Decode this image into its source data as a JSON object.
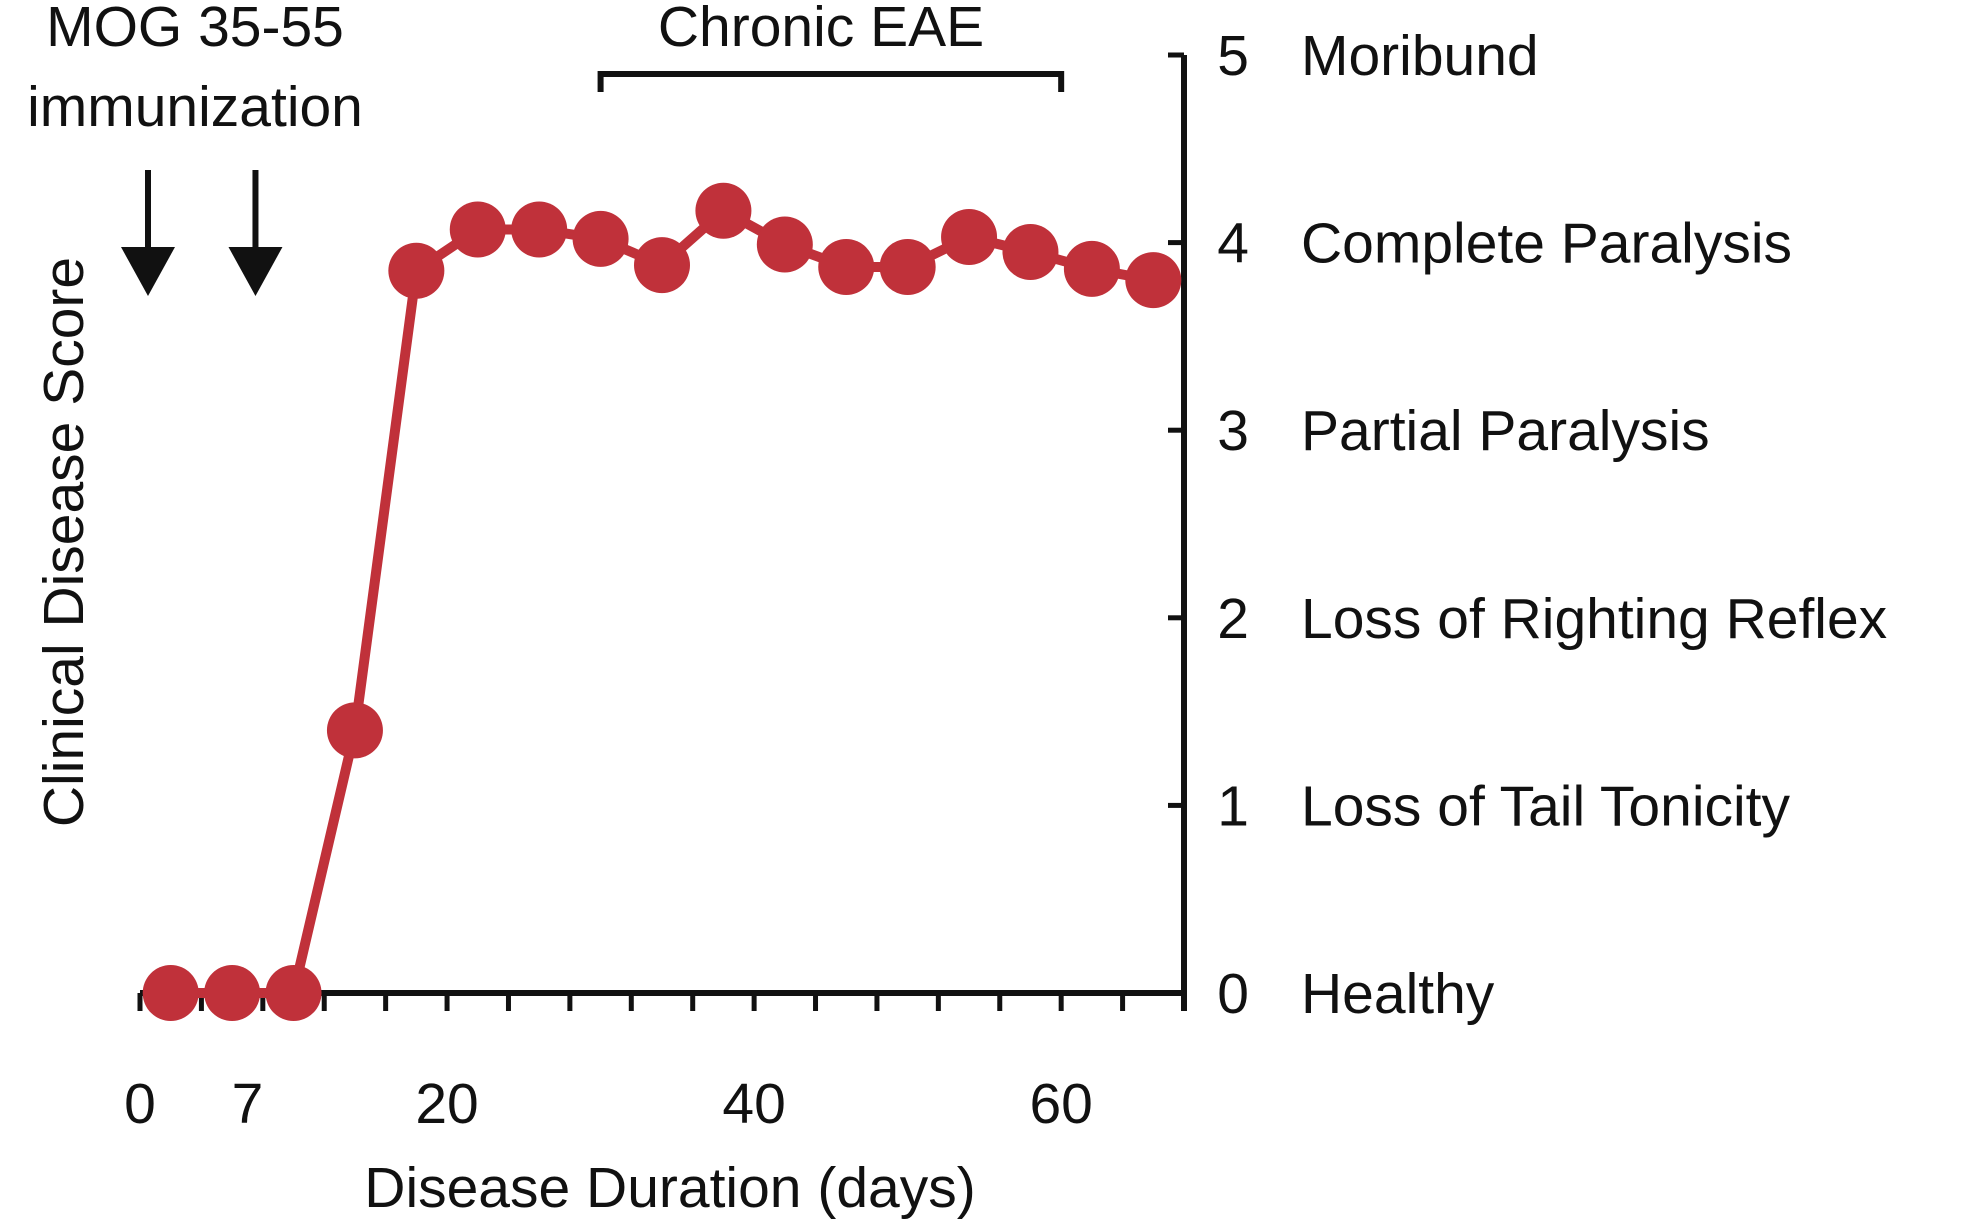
{
  "chart_data": {
    "type": "line",
    "title": "",
    "xlabel": "Disease Duration (days)",
    "ylabel": "Clinical Disease Score",
    "x_ticks": [
      0,
      7,
      20,
      40,
      60
    ],
    "y_ticks": [
      {
        "value": 0,
        "label": "0",
        "description": "Healthy"
      },
      {
        "value": 1,
        "label": "1",
        "description": "Loss of Tail Tonicity"
      },
      {
        "value": 2,
        "label": "2",
        "description": "Loss of Righting Reflex"
      },
      {
        "value": 3,
        "label": "3",
        "description": "Partial Paralysis"
      },
      {
        "value": 4,
        "label": "4",
        "description": "Complete Paralysis"
      },
      {
        "value": 5,
        "label": "5",
        "description": "Moribund"
      }
    ],
    "xlim": [
      0,
      68
    ],
    "ylim": [
      0,
      5
    ],
    "y_axis_side": "right",
    "grid": false,
    "series": [
      {
        "color": "#c0313a",
        "x": [
          2,
          6,
          10,
          14,
          18,
          22,
          26,
          30,
          34,
          38,
          42,
          46,
          50,
          54,
          58,
          62,
          66
        ],
        "y": [
          0,
          0,
          0,
          1.4,
          3.85,
          4.07,
          4.07,
          4.02,
          3.88,
          4.17,
          3.99,
          3.87,
          3.87,
          4.03,
          3.95,
          3.86,
          3.8
        ]
      }
    ],
    "annotations": {
      "immunization_label_line1": "MOG 35-55",
      "immunization_label_line2": "immunization",
      "immunization_days": [
        0,
        7
      ],
      "chronic_label": "Chronic EAE",
      "chronic_range": [
        30,
        60
      ]
    }
  }
}
